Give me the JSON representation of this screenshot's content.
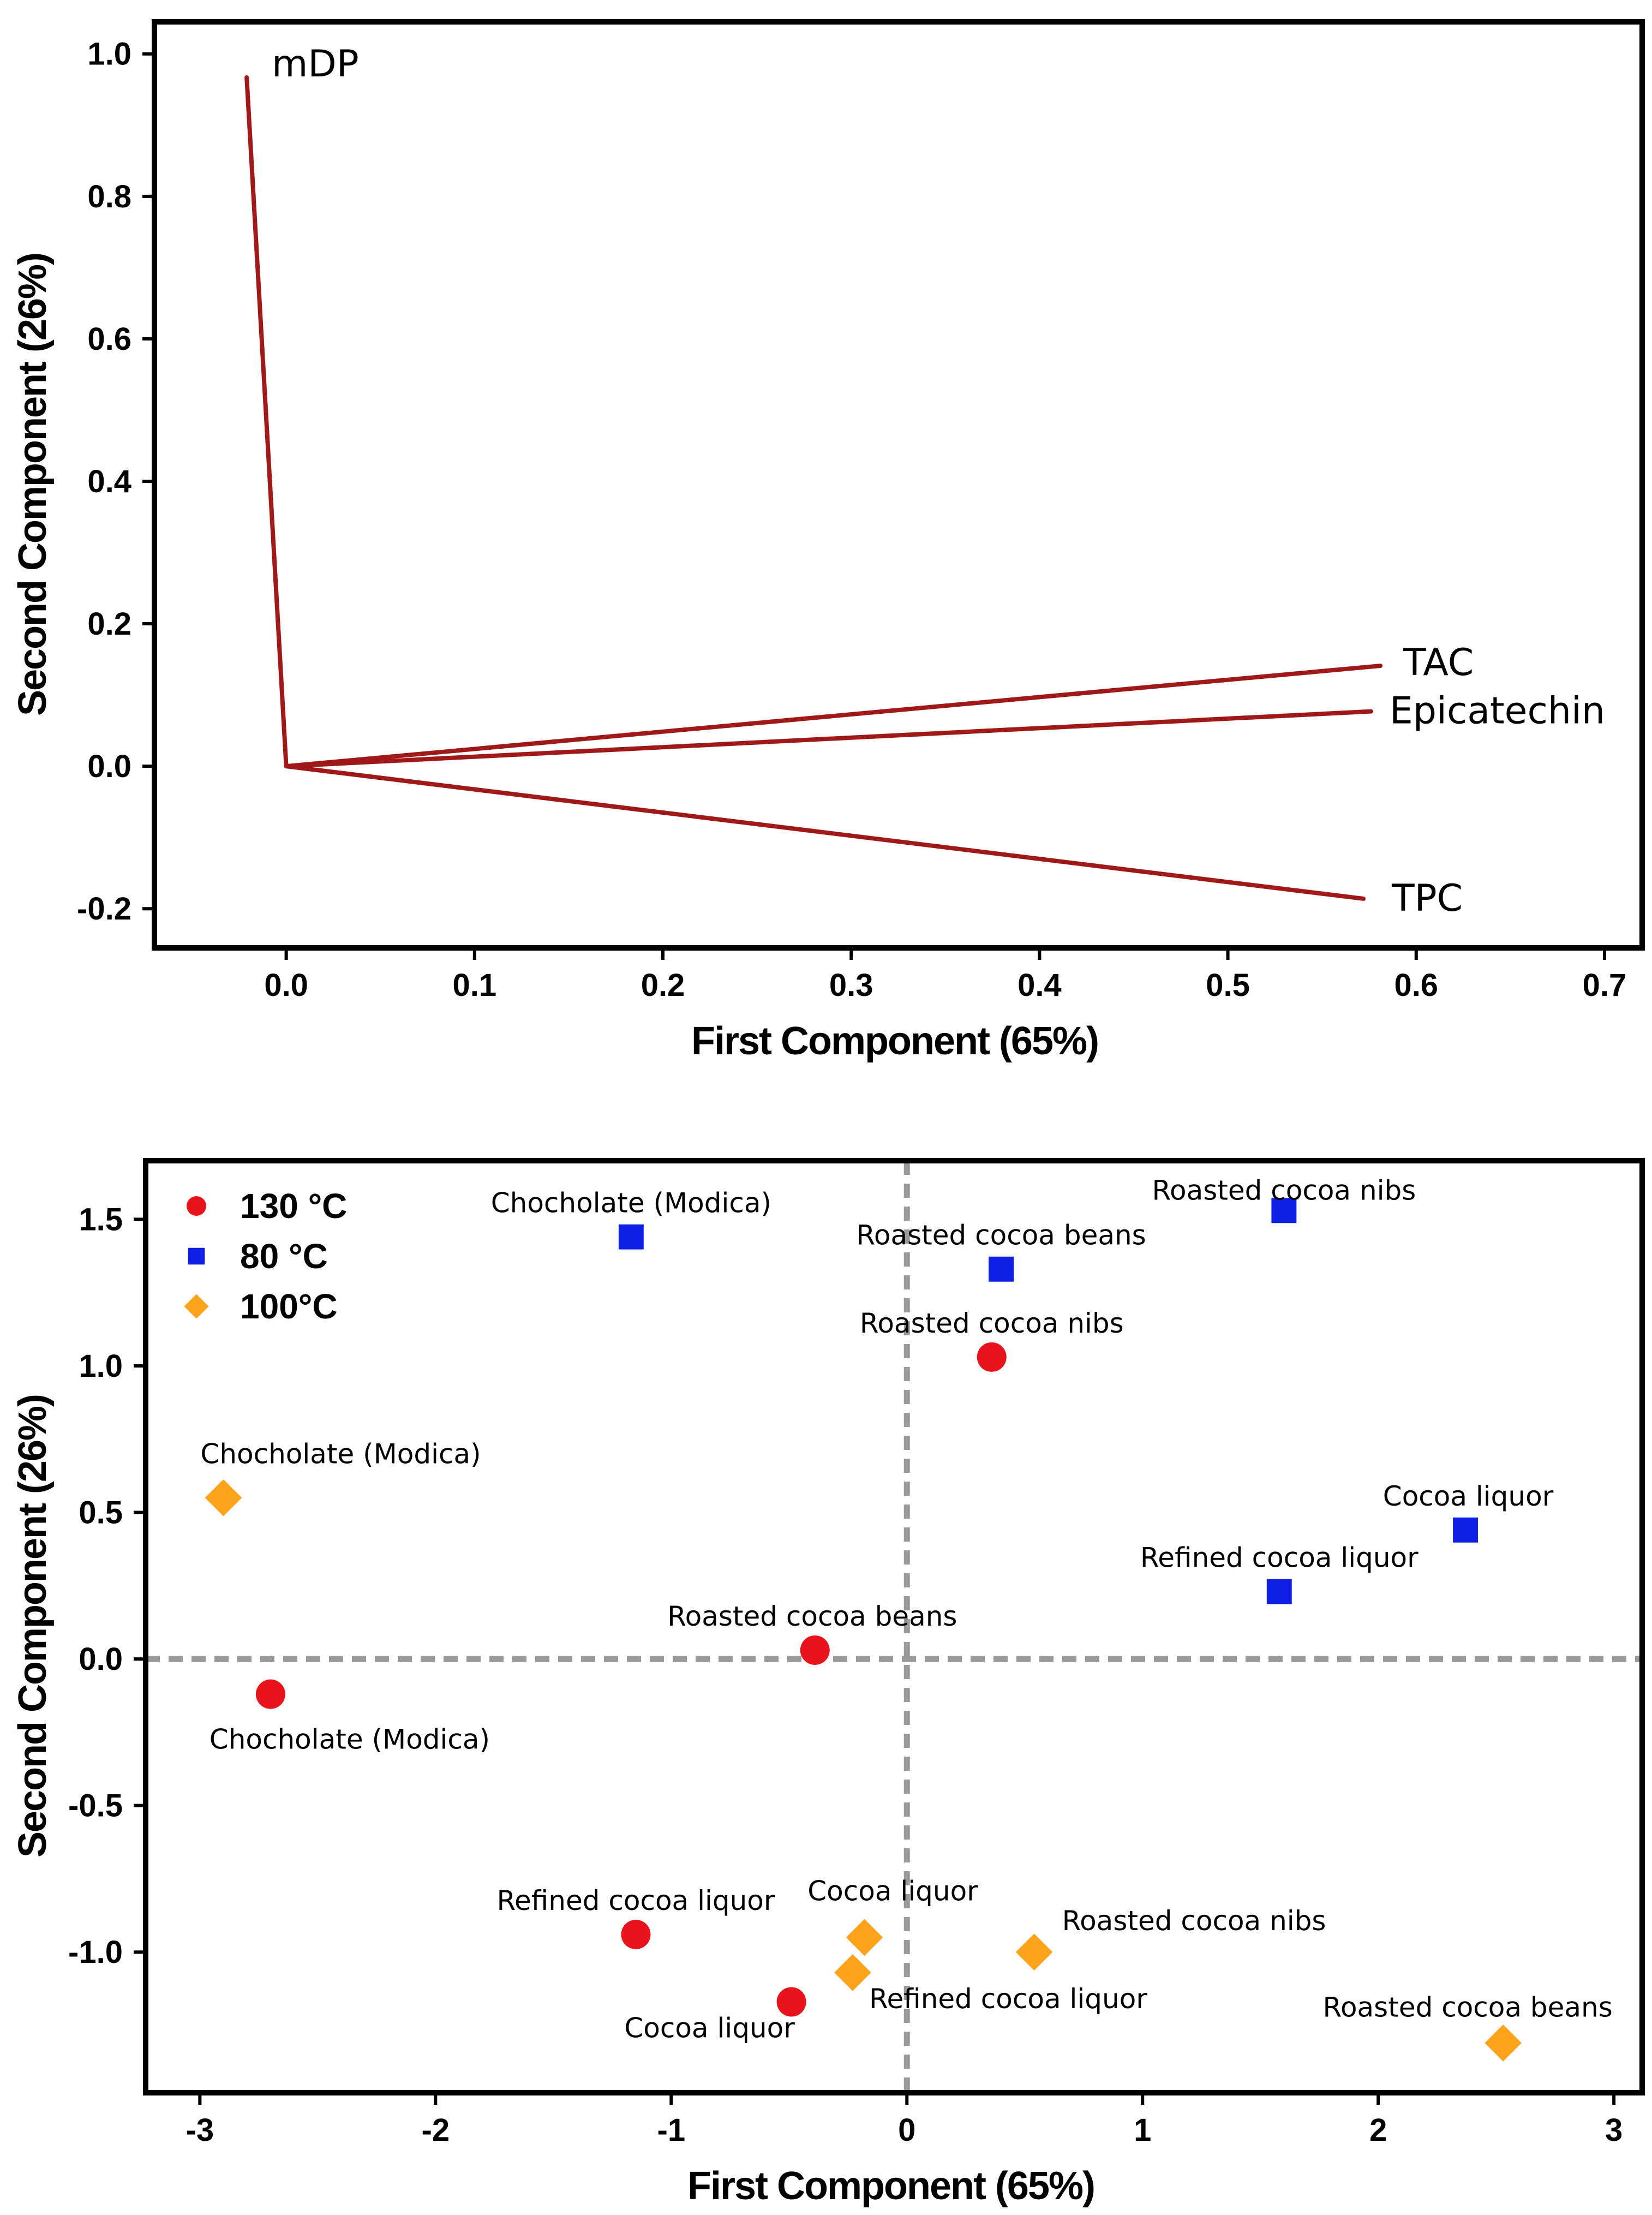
{
  "chart_data": [
    {
      "type": "line",
      "name": "loading-plot",
      "xlabel": "First Component (65%)",
      "ylabel": "Second Component (26%)",
      "xlim": [
        -0.07,
        0.72
      ],
      "ylim": [
        -0.255,
        1.045
      ],
      "xticks": [
        "0.0",
        "0.1",
        "0.2",
        "0.3",
        "0.4",
        "0.5",
        "0.6",
        "0.7"
      ],
      "xtick_values": [
        0.0,
        0.1,
        0.2,
        0.3,
        0.4,
        0.5,
        0.6,
        0.7
      ],
      "yticks": [
        "1.0",
        "0.8",
        "0.6",
        "0.4",
        "0.2",
        "0.0",
        "-0.2"
      ],
      "ytick_values": [
        1.0,
        0.8,
        0.6,
        0.4,
        0.2,
        0.0,
        -0.2
      ],
      "line_color": "#a01818",
      "vectors": [
        {
          "label": "mDP",
          "x": -0.021,
          "y": 0.967
        },
        {
          "label": "TAC",
          "x": 0.581,
          "y": 0.141
        },
        {
          "label": "Epicatechin",
          "x": 0.576,
          "y": 0.077
        },
        {
          "label": "TPC",
          "x": 0.572,
          "y": -0.186
        }
      ]
    },
    {
      "type": "scatter",
      "name": "score-plot",
      "xlabel": "First Component (65%)",
      "ylabel": "Second Component (26%)",
      "xlim": [
        -3.23,
        3.12
      ],
      "ylim": [
        -1.48,
        1.7
      ],
      "xticks": [
        "-3",
        "-2",
        "-1",
        "0",
        "1",
        "2",
        "3"
      ],
      "xtick_values": [
        -3,
        -2,
        -1,
        0,
        1,
        2,
        3
      ],
      "yticks": [
        "1.5",
        "1.0",
        "0.5",
        "0.0",
        "-0.5",
        "-1.0"
      ],
      "ytick_values": [
        1.5,
        1.0,
        0.5,
        0.0,
        -0.5,
        -1.0
      ],
      "reference_lines": {
        "x": 0,
        "y": 0,
        "color": "#999999"
      },
      "legend_position": "top-left",
      "series": [
        {
          "name": "130 °C",
          "marker": "circle",
          "color": "#e8131b",
          "points": [
            {
              "label": "Roasted cocoa nibs",
              "x": 0.36,
              "y": 1.03
            },
            {
              "label": "Roasted cocoa beans",
              "x": -0.39,
              "y": 0.03
            },
            {
              "label": "Chocholate (Modica)",
              "x": -2.7,
              "y": -0.12
            },
            {
              "label": "Refined cocoa liquor",
              "x": -1.15,
              "y": -0.94
            },
            {
              "label": "Cocoa liquor",
              "x": -0.49,
              "y": -1.17
            }
          ]
        },
        {
          "name": "80 °C",
          "marker": "square",
          "color": "#0f1fe6",
          "points": [
            {
              "label": "Roasted cocoa nibs",
              "x": 1.6,
              "y": 1.53
            },
            {
              "label": "Chocholate (Modica)",
              "x": -1.17,
              "y": 1.44
            },
            {
              "label": "Roasted cocoa beans",
              "x": 0.4,
              "y": 1.33
            },
            {
              "label": "Cocoa liquor",
              "x": 2.37,
              "y": 0.44
            },
            {
              "label": "Refined cocoa liquor",
              "x": 1.58,
              "y": 0.23
            }
          ]
        },
        {
          "name": "100°C",
          "marker": "diamond",
          "color": "#ffa21c",
          "points": [
            {
              "label": "Chocholate (Modica)",
              "x": -2.9,
              "y": 0.55
            },
            {
              "label": "Cocoa liquor",
              "x": -0.18,
              "y": -0.95
            },
            {
              "label": "Roasted cocoa nibs",
              "x": 0.54,
              "y": -1.0
            },
            {
              "label": "Refined cocoa liquor",
              "x": -0.23,
              "y": -1.07
            },
            {
              "label": "Roasted cocoa beans",
              "x": 2.53,
              "y": -1.31
            }
          ]
        }
      ]
    }
  ]
}
